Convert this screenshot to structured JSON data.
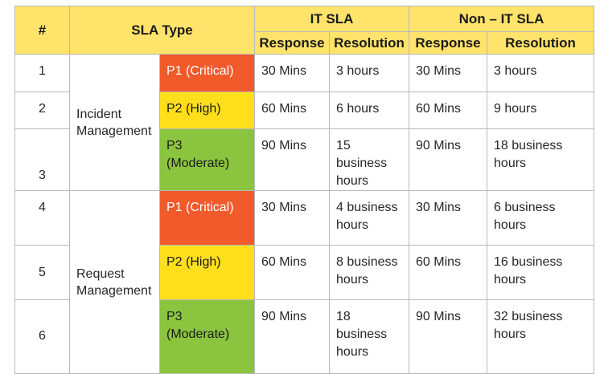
{
  "headers": {
    "num": "#",
    "sla_type": "SLA Type",
    "it_sla": "IT SLA",
    "non_it_sla": "Non – IT SLA",
    "response": "Response",
    "resolution": "Resolution"
  },
  "categories": {
    "incident_line1": "Incident",
    "incident_line2": "Management",
    "request_line1": "Request",
    "request_line2": "Management"
  },
  "colors": {
    "header_bg": "#ffe36a",
    "critical": "#f15a2b",
    "high": "#ffdf1b",
    "moderate": "#8bc43f"
  },
  "rows": [
    {
      "num": "1",
      "priority": "P1 (Critical)",
      "it_response": "30 Mins",
      "it_resolution_1": "3 hours",
      "it_resolution_2": "",
      "non_response": "30 Mins",
      "non_resolution_1": "3 hours",
      "non_resolution_2": ""
    },
    {
      "num": "2",
      "priority": "P2 (High)",
      "it_response": "60 Mins",
      "it_resolution_1": "6 hours",
      "it_resolution_2": "",
      "non_response": "60 Mins",
      "non_resolution_1": "9 hours",
      "non_resolution_2": ""
    },
    {
      "num": "3",
      "priority": "P3 (Moderate)",
      "it_response": "90 Mins",
      "it_resolution_1": "15 business",
      "it_resolution_2": "hours",
      "non_response": "90 Mins",
      "non_resolution_1": "18 business",
      "non_resolution_2": "hours"
    },
    {
      "num": "4",
      "priority": "P1 (Critical)",
      "it_response": "30 Mins",
      "it_resolution_1": "4 business",
      "it_resolution_2": "hours",
      "non_response": "30 Mins",
      "non_resolution_1": "6 business",
      "non_resolution_2": "hours"
    },
    {
      "num": "5",
      "priority": "P2 (High)",
      "it_response": "60 Mins",
      "it_resolution_1": "8 business",
      "it_resolution_2": "hours",
      "non_response": "60 Mins",
      "non_resolution_1": "16 business",
      "non_resolution_2": "hours"
    },
    {
      "num": "6",
      "priority": "P3 (Moderate)",
      "it_response": "90 Mins",
      "it_resolution_1": "18 business",
      "it_resolution_2": "hours",
      "non_response": "90 Mins",
      "non_resolution_1": "32 business",
      "non_resolution_2": "hours"
    }
  ]
}
